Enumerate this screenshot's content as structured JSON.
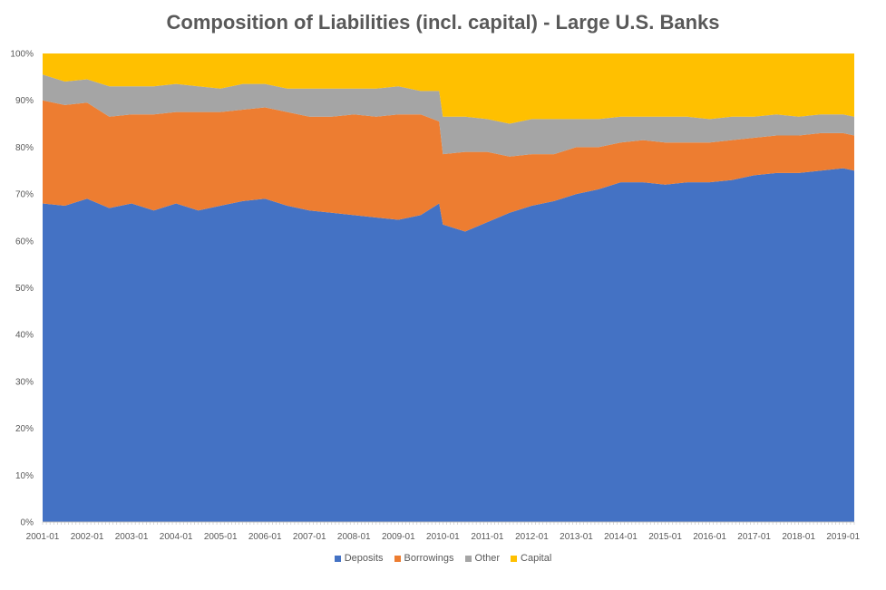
{
  "chart_data": {
    "type": "area",
    "stacked": true,
    "percent": true,
    "title": "Composition of Liabilities (incl. capital) - Large U.S. Banks",
    "xlabel": "",
    "ylabel": "",
    "ylim": [
      0,
      100
    ],
    "yticks": [
      "0%",
      "10%",
      "20%",
      "30%",
      "40%",
      "50%",
      "60%",
      "70%",
      "80%",
      "90%",
      "100%"
    ],
    "xticks": [
      "2001-01",
      "2002-01",
      "2003-01",
      "2004-01",
      "2005-01",
      "2006-01",
      "2007-01",
      "2008-01",
      "2009-01",
      "2010-01",
      "2011-01",
      "2012-01",
      "2013-01",
      "2014-01",
      "2015-01",
      "2016-01",
      "2017-01",
      "2018-01",
      "2019-01"
    ],
    "grid": false,
    "legend_position": "bottom",
    "x": [
      "2001-01",
      "2001-07",
      "2002-01",
      "2002-07",
      "2003-01",
      "2003-07",
      "2004-01",
      "2004-07",
      "2005-01",
      "2005-07",
      "2006-01",
      "2006-07",
      "2007-01",
      "2007-07",
      "2008-01",
      "2008-07",
      "2009-01",
      "2009-07",
      "2009-12",
      "2010-01",
      "2010-07",
      "2011-01",
      "2011-07",
      "2012-01",
      "2012-07",
      "2013-01",
      "2013-07",
      "2014-01",
      "2014-07",
      "2015-01",
      "2015-07",
      "2016-01",
      "2016-07",
      "2017-01",
      "2017-07",
      "2018-01",
      "2018-07",
      "2019-01",
      "2019-04"
    ],
    "series": [
      {
        "name": "Deposits",
        "color": "#4472C4",
        "values": [
          68,
          67.5,
          69,
          67,
          68,
          66.5,
          68,
          66.5,
          67.5,
          68.5,
          69,
          67.5,
          66.5,
          66,
          65.5,
          65,
          64.5,
          65.5,
          68,
          63.5,
          62,
          64,
          66,
          67.5,
          68.5,
          70,
          71,
          72.5,
          72.5,
          72,
          72.5,
          72.5,
          73,
          74,
          74.5,
          74.5,
          75,
          75.5,
          75
        ]
      },
      {
        "name": "Borrowings",
        "color": "#ED7D31",
        "values": [
          22,
          21.5,
          20.5,
          19.5,
          19,
          20.5,
          19.5,
          21,
          20,
          19.5,
          19.5,
          20,
          20,
          20.5,
          21.5,
          21.5,
          22.5,
          21.5,
          17.5,
          15,
          17,
          15,
          12,
          11,
          10,
          10,
          9,
          8.5,
          9,
          9,
          8.5,
          8.5,
          8.5,
          8,
          8,
          8,
          8,
          7.5,
          7.5
        ]
      },
      {
        "name": "Other",
        "color": "#A5A5A5",
        "values": [
          5.5,
          5,
          5,
          6.5,
          6,
          6,
          6,
          5.5,
          5,
          5.5,
          5,
          5,
          6,
          6,
          5.5,
          6,
          6,
          5,
          6.5,
          8,
          7.5,
          7,
          7,
          7.5,
          7.5,
          6,
          6,
          5.5,
          5,
          5.5,
          5.5,
          5,
          5,
          4.5,
          4.5,
          4,
          4,
          4,
          4
        ]
      },
      {
        "name": "Capital",
        "color": "#FFC000",
        "values": [
          4.5,
          6,
          5.5,
          7,
          7,
          7,
          6.5,
          7,
          7.5,
          6.5,
          6.5,
          7.5,
          7.5,
          7.5,
          7.5,
          7.5,
          7,
          8,
          8,
          13.5,
          13.5,
          14,
          15,
          14,
          14,
          14,
          14,
          13.5,
          13.5,
          13.5,
          13.5,
          14,
          13.5,
          13.5,
          13,
          13.5,
          13,
          13,
          13.5
        ]
      }
    ]
  }
}
